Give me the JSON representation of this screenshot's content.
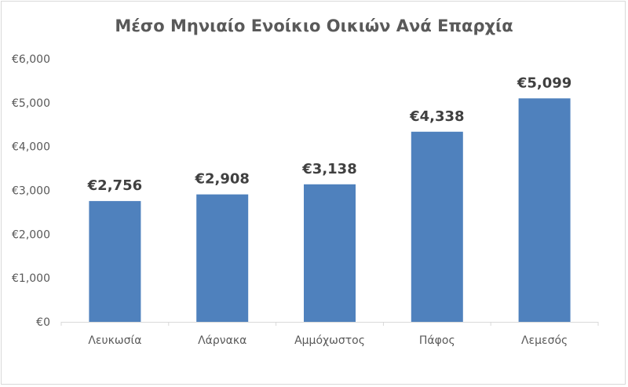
{
  "chart_data": {
    "type": "bar",
    "title": "Μέσο Μηνιαίο Ενοίκιο Οικιών Ανά Επαρχία",
    "xlabel": "",
    "ylabel": "",
    "categories": [
      "Λευκωσία",
      "Λάρνακα",
      "Αμμόχωστος",
      "Πάφος",
      "Λεμεσός"
    ],
    "values": [
      2756,
      2908,
      3138,
      4338,
      5099
    ],
    "data_labels": [
      "€2,756",
      "€2,908",
      "€3,138",
      "€4,338",
      "€5,099"
    ],
    "ylim": [
      0,
      6000
    ],
    "yticks": [
      0,
      1000,
      2000,
      3000,
      4000,
      5000,
      6000
    ],
    "ytick_labels": [
      "€0",
      "€1,000",
      "€2,000",
      "€3,000",
      "€4,000",
      "€5,000",
      "€6,000"
    ],
    "grid": false,
    "legend": "none",
    "bar_color": "#4f81bd"
  }
}
